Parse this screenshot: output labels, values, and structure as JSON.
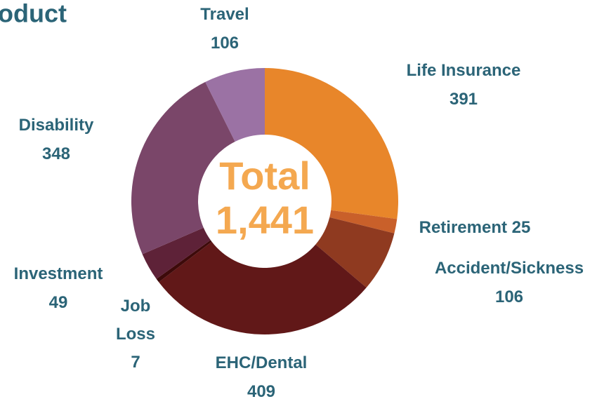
{
  "chart_data": {
    "type": "donut",
    "title": "Product",
    "center_label": "Total",
    "total": 1441,
    "total_label": "1,441",
    "categories": [
      "Life Insurance",
      "Retirement",
      "Accident/Sickness",
      "EHC/Dental",
      "Job Loss",
      "Investment",
      "Disability",
      "Travel"
    ],
    "values": [
      391,
      25,
      106,
      409,
      7,
      49,
      348,
      106
    ],
    "colors": [
      "#e8862a",
      "#c9602a",
      "#8f3a20",
      "#611818",
      "#3d0a0a",
      "#5e2238",
      "#7a4669",
      "#9b72a4"
    ]
  }
}
